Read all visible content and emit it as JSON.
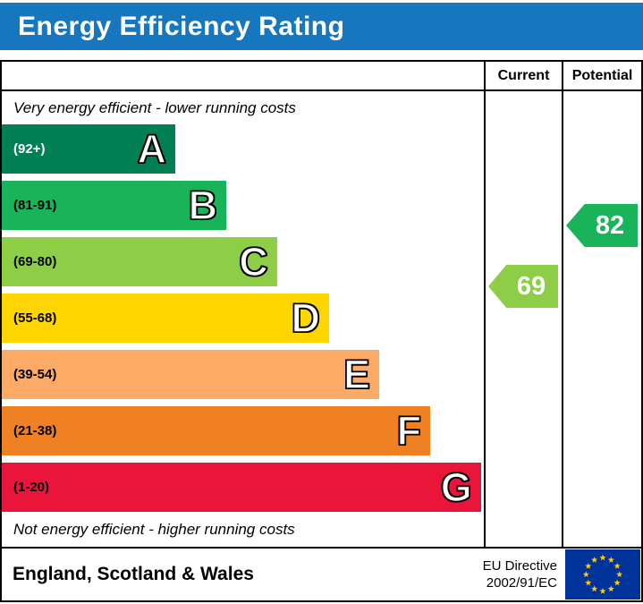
{
  "page_title": "Energy Efficiency Rating",
  "table": {
    "col_current": "Current",
    "col_potential": "Potential"
  },
  "notes": {
    "top": "Very energy efficient - lower running costs",
    "bottom": "Not energy efficient - higher running costs"
  },
  "footer": {
    "region": "England, Scotland & Wales",
    "directive_line1": "EU Directive",
    "directive_line2": "2002/91/EC",
    "flag_icon": "eu-flag-icon"
  },
  "colors": {
    "banner_bg": "#1677be",
    "banner_text": "#ffffff",
    "border": "#000000",
    "flag_bg": "#003399",
    "flag_stars": "#ffcc00"
  },
  "chart_data": {
    "type": "bar",
    "orientation": "horizontal",
    "title": "Energy Efficiency Rating",
    "legend_position": "none",
    "grid": false,
    "bands": [
      {
        "letter": "A",
        "range": "(92+)",
        "min": 92,
        "max": 100,
        "color": "#008054",
        "label_color": "#ffffff",
        "width_pct": 36.0
      },
      {
        "letter": "B",
        "range": "(81-91)",
        "min": 81,
        "max": 91,
        "color": "#19b459",
        "label_color": "#000000",
        "width_pct": 46.6
      },
      {
        "letter": "C",
        "range": "(69-80)",
        "min": 69,
        "max": 80,
        "color": "#8dce46",
        "label_color": "#000000",
        "width_pct": 57.1
      },
      {
        "letter": "D",
        "range": "(55-68)",
        "min": 55,
        "max": 68,
        "color": "#ffd500",
        "label_color": "#000000",
        "width_pct": 67.9
      },
      {
        "letter": "E",
        "range": "(39-54)",
        "min": 39,
        "max": 54,
        "color": "#fcaa65",
        "label_color": "#000000",
        "width_pct": 78.3
      },
      {
        "letter": "F",
        "range": "(21-38)",
        "min": 21,
        "max": 38,
        "color": "#ef8023",
        "label_color": "#000000",
        "width_pct": 88.9
      },
      {
        "letter": "G",
        "range": "(1-20)",
        "min": 1,
        "max": 20,
        "color": "#e9153b",
        "label_color": "#000000",
        "width_pct": 99.4
      }
    ],
    "ratings": {
      "current": {
        "label": "Current",
        "value": 69,
        "band": "C",
        "color": "#8dce46"
      },
      "potential": {
        "label": "Potential",
        "value": 82,
        "band": "B",
        "color": "#19b459"
      }
    }
  }
}
